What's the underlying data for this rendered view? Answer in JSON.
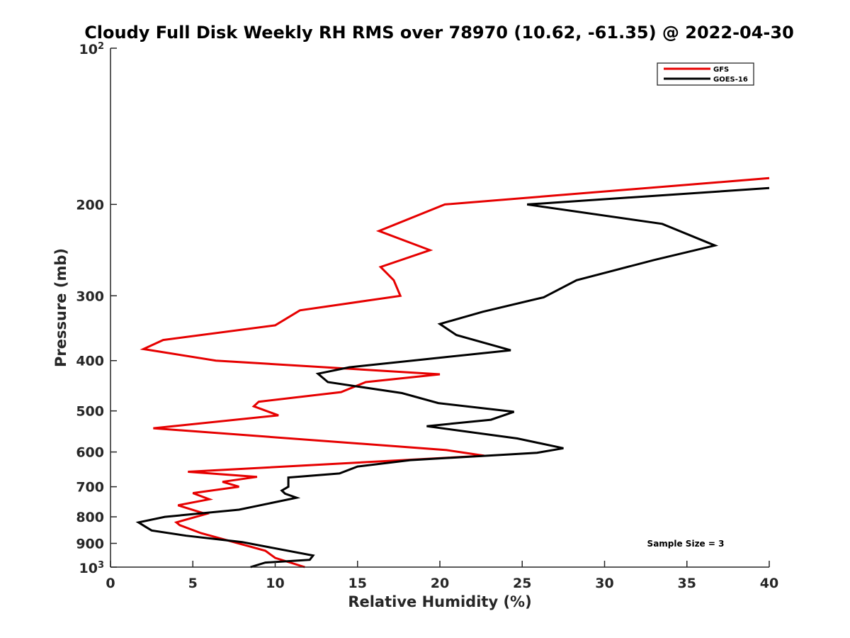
{
  "chart_data": {
    "type": "line",
    "title": "Cloudy Full Disk Weekly RH RMS over 78970 (10.62, -61.35) @ 2022-04-30",
    "xlabel": "Relative Humidity (%)",
    "ylabel": "Pressure (mb)",
    "xlim": [
      0,
      40
    ],
    "ylim": [
      100,
      1000
    ],
    "y_scale": "log",
    "y_reversed": true,
    "x_ticks": [
      "0",
      "5",
      "10",
      "15",
      "20",
      "25",
      "30",
      "35",
      "40"
    ],
    "y_ticks": [
      {
        "value": 100,
        "base": "10",
        "exp": "2"
      },
      {
        "value": 200,
        "label": "200"
      },
      {
        "value": 300,
        "label": "300"
      },
      {
        "value": 400,
        "label": "400"
      },
      {
        "value": 500,
        "label": "500"
      },
      {
        "value": 600,
        "label": "600"
      },
      {
        "value": 700,
        "label": "700"
      },
      {
        "value": 800,
        "label": "800"
      },
      {
        "value": 900,
        "label": "900"
      },
      {
        "value": 1000,
        "base": "10",
        "exp": "3"
      }
    ],
    "legend_position": "top-right",
    "grid": false,
    "annotation": "Sample Size = 3",
    "series": [
      {
        "name": "GFS",
        "color": "#e60000",
        "points": [
          [
            40.0,
            178
          ],
          [
            20.3,
            200
          ],
          [
            16.3,
            225
          ],
          [
            19.4,
            245
          ],
          [
            16.4,
            264
          ],
          [
            17.2,
            280
          ],
          [
            17.6,
            300
          ],
          [
            11.5,
            320
          ],
          [
            10.0,
            342
          ],
          [
            3.2,
            365
          ],
          [
            2.0,
            380
          ],
          [
            6.4,
            400
          ],
          [
            20.0,
            425
          ],
          [
            15.5,
            440
          ],
          [
            14.0,
            460
          ],
          [
            9.0,
            480
          ],
          [
            8.7,
            490
          ],
          [
            10.2,
            510
          ],
          [
            2.6,
            540
          ],
          [
            20.4,
            595
          ],
          [
            22.7,
            610
          ],
          [
            4.7,
            655
          ],
          [
            8.9,
            670
          ],
          [
            6.8,
            685
          ],
          [
            7.8,
            700
          ],
          [
            5.0,
            720
          ],
          [
            6.0,
            740
          ],
          [
            4.1,
            760
          ],
          [
            5.8,
            790
          ],
          [
            4.0,
            820
          ],
          [
            4.2,
            830
          ],
          [
            5.5,
            860
          ],
          [
            9.4,
            930
          ],
          [
            10.0,
            960
          ],
          [
            11.8,
            1000
          ]
        ]
      },
      {
        "name": "GOES-16",
        "color": "#000000",
        "points": [
          [
            40.0,
            186
          ],
          [
            25.3,
            200
          ],
          [
            33.5,
            218
          ],
          [
            36.7,
            240
          ],
          [
            33.0,
            256
          ],
          [
            28.3,
            280
          ],
          [
            26.3,
            302
          ],
          [
            22.6,
            322
          ],
          [
            20.0,
            340
          ],
          [
            21.0,
            357
          ],
          [
            24.3,
            382
          ],
          [
            14.5,
            412
          ],
          [
            12.6,
            424
          ],
          [
            13.2,
            440
          ],
          [
            17.7,
            462
          ],
          [
            19.9,
            483
          ],
          [
            24.5,
            502
          ],
          [
            23.1,
            520
          ],
          [
            19.2,
            535
          ],
          [
            24.7,
            565
          ],
          [
            27.5,
            590
          ],
          [
            25.9,
            602
          ],
          [
            18.2,
            622
          ],
          [
            15.0,
            640
          ],
          [
            13.9,
            660
          ],
          [
            10.8,
            672
          ],
          [
            10.8,
            700
          ],
          [
            10.4,
            712
          ],
          [
            10.6,
            722
          ],
          [
            11.3,
            735
          ],
          [
            7.8,
            775
          ],
          [
            3.3,
            800
          ],
          [
            1.7,
            820
          ],
          [
            2.1,
            835
          ],
          [
            2.5,
            850
          ],
          [
            4.6,
            870
          ],
          [
            8.0,
            895
          ],
          [
            12.3,
            950
          ],
          [
            12.1,
            968
          ],
          [
            9.4,
            980
          ],
          [
            8.5,
            1000
          ]
        ]
      }
    ]
  }
}
